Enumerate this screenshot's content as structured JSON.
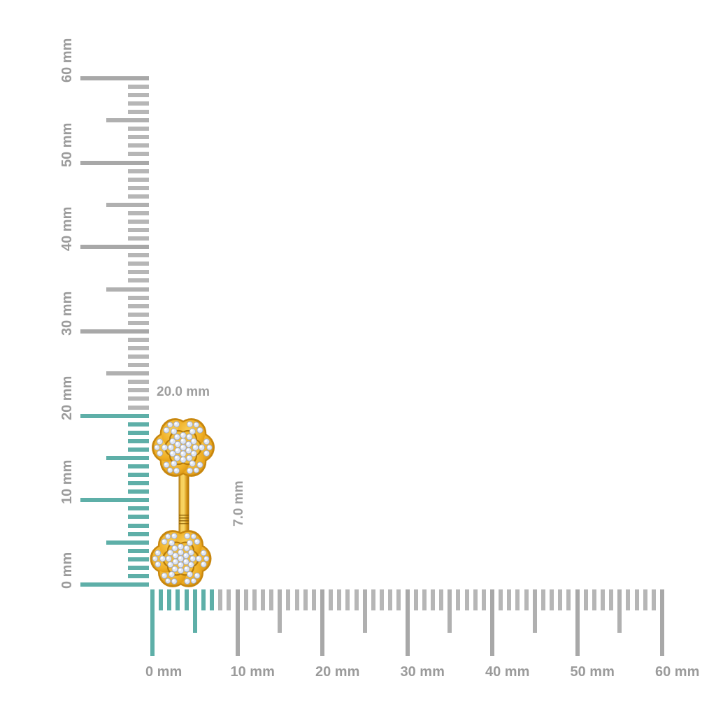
{
  "scene": {
    "background": "#ffffff",
    "description": "jewelry size reference with vertical and horizontal mm rulers"
  },
  "vertical_ruler": {
    "unit": "mm",
    "min": 0,
    "max": 60,
    "major_step": 10,
    "medium_step": 5,
    "minor_step": 1,
    "labels": [
      "0 mm",
      "10 mm",
      "20 mm",
      "30 mm",
      "40 mm",
      "50 mm",
      "60 mm"
    ],
    "highlight_to_mm": 20,
    "colors": {
      "highlight": "#5eafa8",
      "major": "#a8a8a8",
      "medium": "#b0b0b0",
      "minor": "#b6b6b6",
      "label": "#9b9b9b"
    }
  },
  "horizontal_ruler": {
    "unit": "mm",
    "min": 0,
    "max": 60,
    "major_step": 10,
    "medium_step": 5,
    "minor_step": 1,
    "labels": [
      "0 mm",
      "10 mm",
      "20 mm",
      "30 mm",
      "40 mm",
      "50 mm",
      "60 mm"
    ],
    "highlight_to_mm": 7,
    "colors": {
      "highlight": "#5eafa8",
      "major": "#a8a8a8",
      "medium": "#b0b0b0",
      "minor": "#b6b6b6",
      "label": "#9b9b9b"
    }
  },
  "measurements": {
    "height_label": "20.0 mm",
    "width_label": "7.0 mm",
    "label_color": "#9e9e9e"
  },
  "jewelry": {
    "name": "diamond-flower-drop-earring",
    "colors": {
      "gold_border": "#c8870e",
      "gold_main": "#efae24",
      "gold_light": "#f8cf5a",
      "gold_deep": "#d28e0f",
      "gold_line": "#b57a08",
      "gold_inner": "#f3bc37",
      "bar_dark": "#a86f05",
      "stone_base": "#dfe6f3",
      "stone_edge": "#9ea9c7",
      "stone_glint": "#ffffff"
    }
  }
}
